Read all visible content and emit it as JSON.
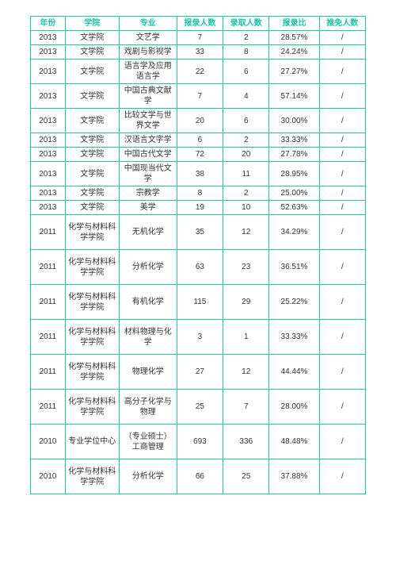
{
  "table": {
    "border_color": "#1cc4a8",
    "header_text_color": "#1cc4a8",
    "body_text_color": "#333333",
    "background_color": "#ffffff",
    "header_fontsize": 10,
    "body_fontsize": 10,
    "columns": [
      "年份",
      "学院",
      "专业",
      "报录人数",
      "录取人数",
      "报录比",
      "推免人数"
    ],
    "col_widths": [
      "9%",
      "14%",
      "15%",
      "12%",
      "12%",
      "13%",
      "12%"
    ],
    "rows": [
      {
        "year": "2013",
        "college": "文学院",
        "major": "文艺学",
        "apply": "7",
        "admit": "2",
        "ratio": "28.57%",
        "exempt": "/",
        "tall": false
      },
      {
        "year": "2013",
        "college": "文学院",
        "major": "戏剧与影视学",
        "apply": "33",
        "admit": "8",
        "ratio": "24.24%",
        "exempt": "/",
        "tall": false
      },
      {
        "year": "2013",
        "college": "文学院",
        "major": "语言学及应用语言学",
        "apply": "22",
        "admit": "6",
        "ratio": "27.27%",
        "exempt": "/",
        "tall": false
      },
      {
        "year": "2013",
        "college": "文学院",
        "major": "中国古典文献学",
        "apply": "7",
        "admit": "4",
        "ratio": "57.14%",
        "exempt": "/",
        "tall": false
      },
      {
        "year": "2013",
        "college": "文学院",
        "major": "比较文学与世界文学",
        "apply": "20",
        "admit": "6",
        "ratio": "30.00%",
        "exempt": "/",
        "tall": false
      },
      {
        "year": "2013",
        "college": "文学院",
        "major": "汉语言文字学",
        "apply": "6",
        "admit": "2",
        "ratio": "33.33%",
        "exempt": "/",
        "tall": false
      },
      {
        "year": "2013",
        "college": "文学院",
        "major": "中国古代文学",
        "apply": "72",
        "admit": "20",
        "ratio": "27.78%",
        "exempt": "/",
        "tall": false
      },
      {
        "year": "2013",
        "college": "文学院",
        "major": "中国现当代文学",
        "apply": "38",
        "admit": "11",
        "ratio": "28.95%",
        "exempt": "/",
        "tall": false
      },
      {
        "year": "2013",
        "college": "文学院",
        "major": "宗教学",
        "apply": "8",
        "admit": "2",
        "ratio": "25.00%",
        "exempt": "/",
        "tall": false
      },
      {
        "year": "2013",
        "college": "文学院",
        "major": "美学",
        "apply": "19",
        "admit": "10",
        "ratio": "52.63%",
        "exempt": "/",
        "tall": false
      },
      {
        "year": "2011",
        "college": "化学与材料科学学院",
        "major": "无机化学",
        "apply": "35",
        "admit": "12",
        "ratio": "34.29%",
        "exempt": "/",
        "tall": true
      },
      {
        "year": "2011",
        "college": "化学与材料科学学院",
        "major": "分析化学",
        "apply": "63",
        "admit": "23",
        "ratio": "36.51%",
        "exempt": "/",
        "tall": true
      },
      {
        "year": "2011",
        "college": "化学与材料科学学院",
        "major": "有机化学",
        "apply": "115",
        "admit": "29",
        "ratio": "25.22%",
        "exempt": "/",
        "tall": true
      },
      {
        "year": "2011",
        "college": "化学与材料科学学院",
        "major": "材料物理与化学",
        "apply": "3",
        "admit": "1",
        "ratio": "33.33%",
        "exempt": "/",
        "tall": true
      },
      {
        "year": "2011",
        "college": "化学与材料科学学院",
        "major": "物理化学",
        "apply": "27",
        "admit": "12",
        "ratio": "44.44%",
        "exempt": "/",
        "tall": true
      },
      {
        "year": "2011",
        "college": "化学与材料科学学院",
        "major": "高分子化学与物理",
        "apply": "25",
        "admit": "7",
        "ratio": "28.00%",
        "exempt": "/",
        "tall": true
      },
      {
        "year": "2010",
        "college": "专业学位中心",
        "major": "（专业硕士）工商管理",
        "apply": "693",
        "admit": "336",
        "ratio": "48.48%",
        "exempt": "/",
        "tall": true
      },
      {
        "year": "2010",
        "college": "化学与材料科学学院",
        "major": "分析化学",
        "apply": "66",
        "admit": "25",
        "ratio": "37.88%",
        "exempt": "/",
        "tall": true
      }
    ]
  }
}
